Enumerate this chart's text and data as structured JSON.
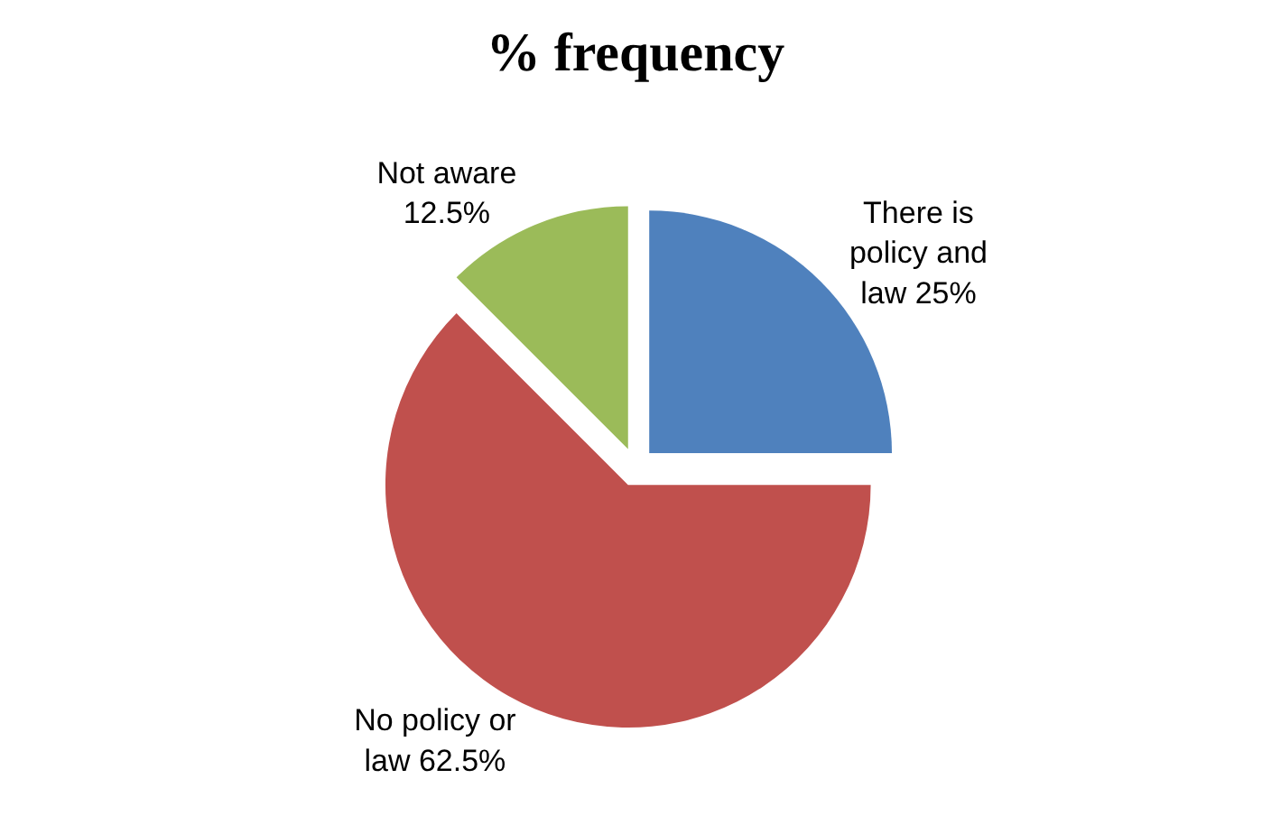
{
  "chart_data": {
    "type": "pie",
    "title": "% frequency",
    "categories": [
      "There is policy and law",
      "No policy or law",
      "Not aware"
    ],
    "values": [
      25,
      62.5,
      12.5
    ],
    "colors": [
      "#4f81bd",
      "#c0504d",
      "#9bbb59"
    ],
    "value_labels": [
      "25%",
      "62.5%",
      "12.5%"
    ],
    "legend": false
  }
}
